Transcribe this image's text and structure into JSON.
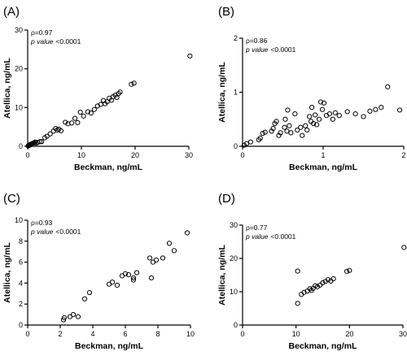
{
  "chart_data": [
    {
      "type": "scatter",
      "panel": "(A)",
      "xlabel": "Beckman, ng/mL",
      "ylabel": "Atellica, ng/mL",
      "xlim": [
        0,
        30
      ],
      "ylim": [
        0,
        30
      ],
      "xticks": [
        0,
        10,
        20,
        30
      ],
      "yticks": [
        0,
        10,
        20,
        30
      ],
      "annotation_rho": "ρ=0.97",
      "annotation_p_label": "p value",
      "annotation_p_value": "<0.0001",
      "points": [
        [
          0.1,
          0.1
        ],
        [
          0.2,
          0.2
        ],
        [
          0.3,
          0.3
        ],
        [
          0.4,
          0.3
        ],
        [
          0.5,
          0.5
        ],
        [
          0.6,
          0.4
        ],
        [
          0.7,
          0.6
        ],
        [
          0.8,
          0.7
        ],
        [
          1.0,
          0.8
        ],
        [
          1.2,
          0.9
        ],
        [
          1.4,
          1.1
        ],
        [
          1.6,
          0.8
        ],
        [
          1.9,
          1.0
        ],
        [
          2.3,
          1.2
        ],
        [
          2.6,
          1.2
        ],
        [
          3.2,
          2.2
        ],
        [
          3.6,
          2.6
        ],
        [
          4.2,
          3.2
        ],
        [
          4.8,
          3.9
        ],
        [
          5.2,
          4.6
        ],
        [
          5.5,
          4.2
        ],
        [
          5.8,
          4.4
        ],
        [
          6.2,
          4.0
        ],
        [
          7.0,
          6.2
        ],
        [
          7.5,
          5.8
        ],
        [
          8.2,
          6.0
        ],
        [
          8.8,
          7.2
        ],
        [
          9.3,
          6.1
        ],
        [
          9.8,
          8.8
        ],
        [
          10.4,
          7.8
        ],
        [
          11.2,
          8.9
        ],
        [
          11.8,
          8.6
        ],
        [
          12.4,
          9.5
        ],
        [
          13.0,
          10.4
        ],
        [
          13.6,
          10.8
        ],
        [
          14.1,
          11.8
        ],
        [
          14.4,
          11.0
        ],
        [
          14.8,
          11.5
        ],
        [
          15.2,
          12.4
        ],
        [
          15.6,
          11.9
        ],
        [
          15.9,
          12.8
        ],
        [
          16.3,
          13.2
        ],
        [
          16.6,
          12.6
        ],
        [
          16.9,
          13.6
        ],
        [
          17.2,
          14.0
        ],
        [
          19.3,
          16.0
        ],
        [
          19.8,
          16.3
        ],
        [
          30.2,
          23.3
        ]
      ]
    },
    {
      "type": "scatter",
      "panel": "(B)",
      "xlabel": "Beckman, ng/mL",
      "ylabel": "Atellica, ng/mL",
      "xlim": [
        0,
        2
      ],
      "ylim": [
        0,
        2
      ],
      "xticks": [
        0,
        1,
        2
      ],
      "yticks": [
        0,
        1,
        2
      ],
      "annotation_rho": "ρ=0.86",
      "annotation_p_label": "p value",
      "annotation_p_value": "<0.0001",
      "points": [
        [
          0.02,
          0.02
        ],
        [
          0.05,
          0.05
        ],
        [
          0.1,
          0.08
        ],
        [
          0.2,
          0.12
        ],
        [
          0.22,
          0.15
        ],
        [
          0.25,
          0.24
        ],
        [
          0.28,
          0.26
        ],
        [
          0.36,
          0.28
        ],
        [
          0.38,
          0.33
        ],
        [
          0.4,
          0.42
        ],
        [
          0.42,
          0.46
        ],
        [
          0.45,
          0.2
        ],
        [
          0.47,
          0.25
        ],
        [
          0.52,
          0.35
        ],
        [
          0.53,
          0.5
        ],
        [
          0.55,
          0.28
        ],
        [
          0.56,
          0.67
        ],
        [
          0.58,
          0.38
        ],
        [
          0.6,
          0.25
        ],
        [
          0.65,
          0.6
        ],
        [
          0.68,
          0.3
        ],
        [
          0.72,
          0.35
        ],
        [
          0.74,
          0.2
        ],
        [
          0.78,
          0.38
        ],
        [
          0.8,
          0.3
        ],
        [
          0.83,
          0.55
        ],
        [
          0.85,
          0.46
        ],
        [
          0.86,
          0.72
        ],
        [
          0.88,
          0.42
        ],
        [
          0.9,
          0.58
        ],
        [
          0.92,
          0.4
        ],
        [
          0.95,
          0.5
        ],
        [
          0.97,
          0.82
        ],
        [
          0.99,
          0.68
        ],
        [
          1.01,
          0.8
        ],
        [
          1.04,
          0.57
        ],
        [
          1.08,
          0.6
        ],
        [
          1.12,
          0.5
        ],
        [
          1.15,
          0.62
        ],
        [
          1.2,
          0.57
        ],
        [
          1.3,
          0.64
        ],
        [
          1.4,
          0.6
        ],
        [
          1.5,
          0.55
        ],
        [
          1.58,
          0.65
        ],
        [
          1.65,
          0.68
        ],
        [
          1.72,
          0.72
        ],
        [
          1.8,
          1.1
        ],
        [
          1.95,
          0.67
        ]
      ]
    },
    {
      "type": "scatter",
      "panel": "(C)",
      "xlabel": "Beckman, ng/mL",
      "ylabel": "Atellica, ng/mL",
      "xlim": [
        0,
        10
      ],
      "ylim": [
        0,
        10
      ],
      "xticks": [
        0,
        2,
        4,
        6,
        8,
        10
      ],
      "yticks": [
        0,
        2,
        4,
        6,
        8,
        10
      ],
      "annotation_rho": "ρ=0.93",
      "annotation_p_label": "p value",
      "annotation_p_value": "<0.0001",
      "points": [
        [
          2.2,
          0.5
        ],
        [
          2.25,
          0.7
        ],
        [
          2.6,
          0.8
        ],
        [
          2.8,
          1.0
        ],
        [
          3.1,
          0.8
        ],
        [
          3.5,
          2.5
        ],
        [
          3.8,
          3.1
        ],
        [
          5.0,
          3.9
        ],
        [
          5.2,
          4.1
        ],
        [
          5.5,
          3.8
        ],
        [
          5.8,
          4.7
        ],
        [
          6.0,
          4.9
        ],
        [
          6.2,
          4.8
        ],
        [
          6.5,
          4.5
        ],
        [
          6.5,
          4.3
        ],
        [
          6.7,
          5.0
        ],
        [
          7.6,
          4.5
        ],
        [
          7.5,
          6.4
        ],
        [
          7.7,
          6.0
        ],
        [
          7.9,
          6.2
        ],
        [
          8.3,
          6.4
        ],
        [
          8.7,
          7.8
        ],
        [
          9.0,
          7.1
        ],
        [
          9.8,
          8.8
        ]
      ]
    },
    {
      "type": "scatter",
      "panel": "(D)",
      "xlabel": "Beckman, ng/mL",
      "ylabel": "Atellica, ng/mL",
      "xlim": [
        0,
        30
      ],
      "ylim": [
        0,
        30
      ],
      "xticks": [
        0,
        10,
        20,
        30
      ],
      "yticks": [
        0,
        10,
        20,
        30
      ],
      "annotation_rho": "ρ=0.77",
      "annotation_p_label": "p value",
      "annotation_p_value": "<0.0001",
      "points": [
        [
          10.3,
          16.2
        ],
        [
          10.3,
          6.5
        ],
        [
          11.0,
          9.2
        ],
        [
          11.5,
          9.8
        ],
        [
          12.1,
          10.2
        ],
        [
          12.6,
          10.9
        ],
        [
          12.9,
          10.4
        ],
        [
          13.2,
          11.0
        ],
        [
          13.6,
          11.8
        ],
        [
          14.0,
          11.5
        ],
        [
          14.5,
          12.0
        ],
        [
          15.0,
          12.7
        ],
        [
          15.5,
          13.1
        ],
        [
          16.0,
          13.6
        ],
        [
          16.5,
          13.2
        ],
        [
          17.0,
          13.9
        ],
        [
          19.5,
          16.1
        ],
        [
          20.0,
          16.4
        ],
        [
          30.2,
          23.3
        ]
      ]
    }
  ]
}
